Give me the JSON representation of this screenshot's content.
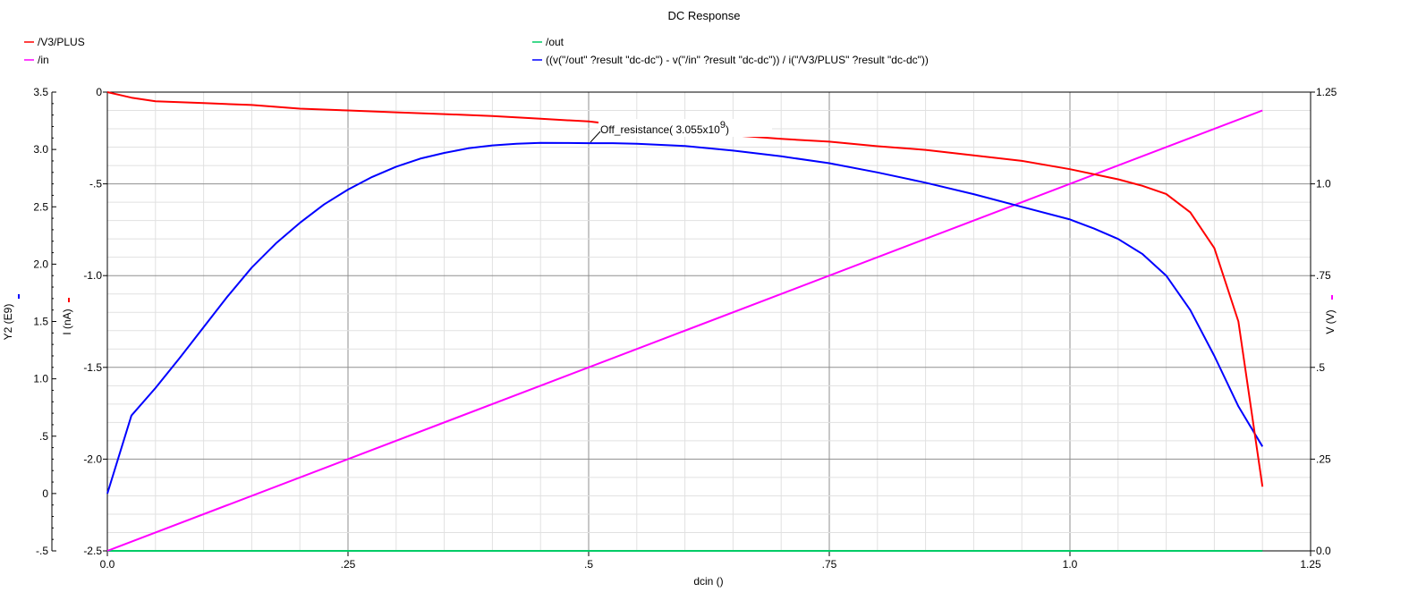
{
  "window": {
    "title": "DC Response"
  },
  "legend": [
    {
      "label": "/V3/PLUS",
      "color": "#ff0000",
      "position": "top-left"
    },
    {
      "label": "/out",
      "color": "#00cc66",
      "position": "top-center"
    },
    {
      "label": "/in",
      "color": "#ff00ff",
      "position": "top-left"
    },
    {
      "label": "((v(\"/out\" ?result \"dc-dc\") - v(\"/in\" ?result \"dc-dc\")) / i(\"/V3/PLUS\" ?result \"dc-dc\"))",
      "color": "#0000ff",
      "position": "top-center"
    }
  ],
  "axes": {
    "x_title": "dcin ()",
    "y_left_outer_title": "Y2 (E9)",
    "y_left_inner_title": "I (nA)",
    "y_right_title": "V (V)"
  },
  "marker": {
    "label": "Off_resistance( 3.055x10",
    "exponent": "9",
    "close": ")"
  },
  "chart_data": {
    "type": "line",
    "title": "DC Response",
    "xlabel": "dcin ()",
    "xlim": [
      0,
      1.25
    ],
    "x_ticks": [
      "0.0",
      ".25",
      ".5",
      ".75",
      "1.0",
      "1.25"
    ],
    "grid": true,
    "legend_position": "top",
    "axes": [
      {
        "id": "y2",
        "label": "Y2 (E9)",
        "side": "left-outer",
        "range": [
          -0.5,
          3.5
        ],
        "ticks": [
          "-.5",
          "0",
          ".5",
          "1.0",
          "1.5",
          "2.0",
          "2.5",
          "3.0",
          "3.5"
        ]
      },
      {
        "id": "i",
        "label": "I (nA)",
        "side": "left-inner",
        "range": [
          -2.5,
          0
        ],
        "ticks": [
          "-2.5",
          "-2.0",
          "-1.5",
          "-1.0",
          "-.5",
          "0"
        ]
      },
      {
        "id": "v",
        "label": "V (V)",
        "side": "right",
        "range": [
          0,
          1.25
        ],
        "ticks": [
          "0.0",
          ".25",
          ".5",
          ".75",
          "1.0",
          "1.25"
        ]
      }
    ],
    "series": [
      {
        "name": "/V3/PLUS",
        "axis": "i",
        "color": "#ff0000",
        "x": [
          0.0,
          0.025,
          0.05,
          0.1,
          0.15,
          0.2,
          0.25,
          0.3,
          0.35,
          0.4,
          0.45,
          0.5,
          0.55,
          0.6,
          0.65,
          0.7,
          0.75,
          0.8,
          0.85,
          0.9,
          0.95,
          1.0,
          1.05,
          1.075,
          1.1,
          1.125,
          1.15,
          1.175,
          1.2
        ],
        "y": [
          0.0,
          -0.03,
          -0.05,
          -0.06,
          -0.07,
          -0.09,
          -0.1,
          -0.11,
          -0.12,
          -0.13,
          -0.145,
          -0.16,
          -0.19,
          -0.215,
          -0.235,
          -0.255,
          -0.27,
          -0.295,
          -0.315,
          -0.345,
          -0.375,
          -0.42,
          -0.475,
          -0.51,
          -0.555,
          -0.655,
          -0.85,
          -1.25,
          -2.15
        ]
      },
      {
        "name": "/out",
        "axis": "v",
        "color": "#00cc66",
        "x": [
          0.0,
          1.2
        ],
        "y": [
          0.0,
          0.0
        ]
      },
      {
        "name": "/in",
        "axis": "v",
        "color": "#ff00ff",
        "x": [
          0.0,
          1.2
        ],
        "y": [
          0.0,
          1.2
        ]
      },
      {
        "name": "((v(\"/out\" ?result \"dc-dc\") - v(\"/in\" ?result \"dc-dc\")) / i(\"/V3/PLUS\" ?result \"dc-dc\"))",
        "axis": "y2",
        "color": "#0000ff",
        "x": [
          0.0,
          0.025,
          0.05,
          0.075,
          0.1,
          0.125,
          0.15,
          0.175,
          0.2,
          0.225,
          0.25,
          0.275,
          0.3,
          0.325,
          0.35,
          0.375,
          0.4,
          0.425,
          0.45,
          0.475,
          0.5,
          0.525,
          0.55,
          0.6,
          0.65,
          0.7,
          0.75,
          0.8,
          0.85,
          0.9,
          0.95,
          1.0,
          1.025,
          1.05,
          1.075,
          1.1,
          1.125,
          1.15,
          1.175,
          1.2
        ],
        "y": [
          0.0,
          0.68,
          0.92,
          1.18,
          1.45,
          1.72,
          1.97,
          2.18,
          2.36,
          2.52,
          2.65,
          2.76,
          2.85,
          2.92,
          2.97,
          3.01,
          3.035,
          3.05,
          3.058,
          3.056,
          3.055,
          3.055,
          3.05,
          3.03,
          2.99,
          2.94,
          2.88,
          2.8,
          2.71,
          2.61,
          2.5,
          2.39,
          2.31,
          2.22,
          2.09,
          1.9,
          1.6,
          1.2,
          0.76,
          0.41
        ]
      }
    ],
    "annotation": {
      "text": "Off_resistance( 3.055x10^9)",
      "x": 0.5,
      "y": 3.055,
      "axis": "y2"
    }
  }
}
